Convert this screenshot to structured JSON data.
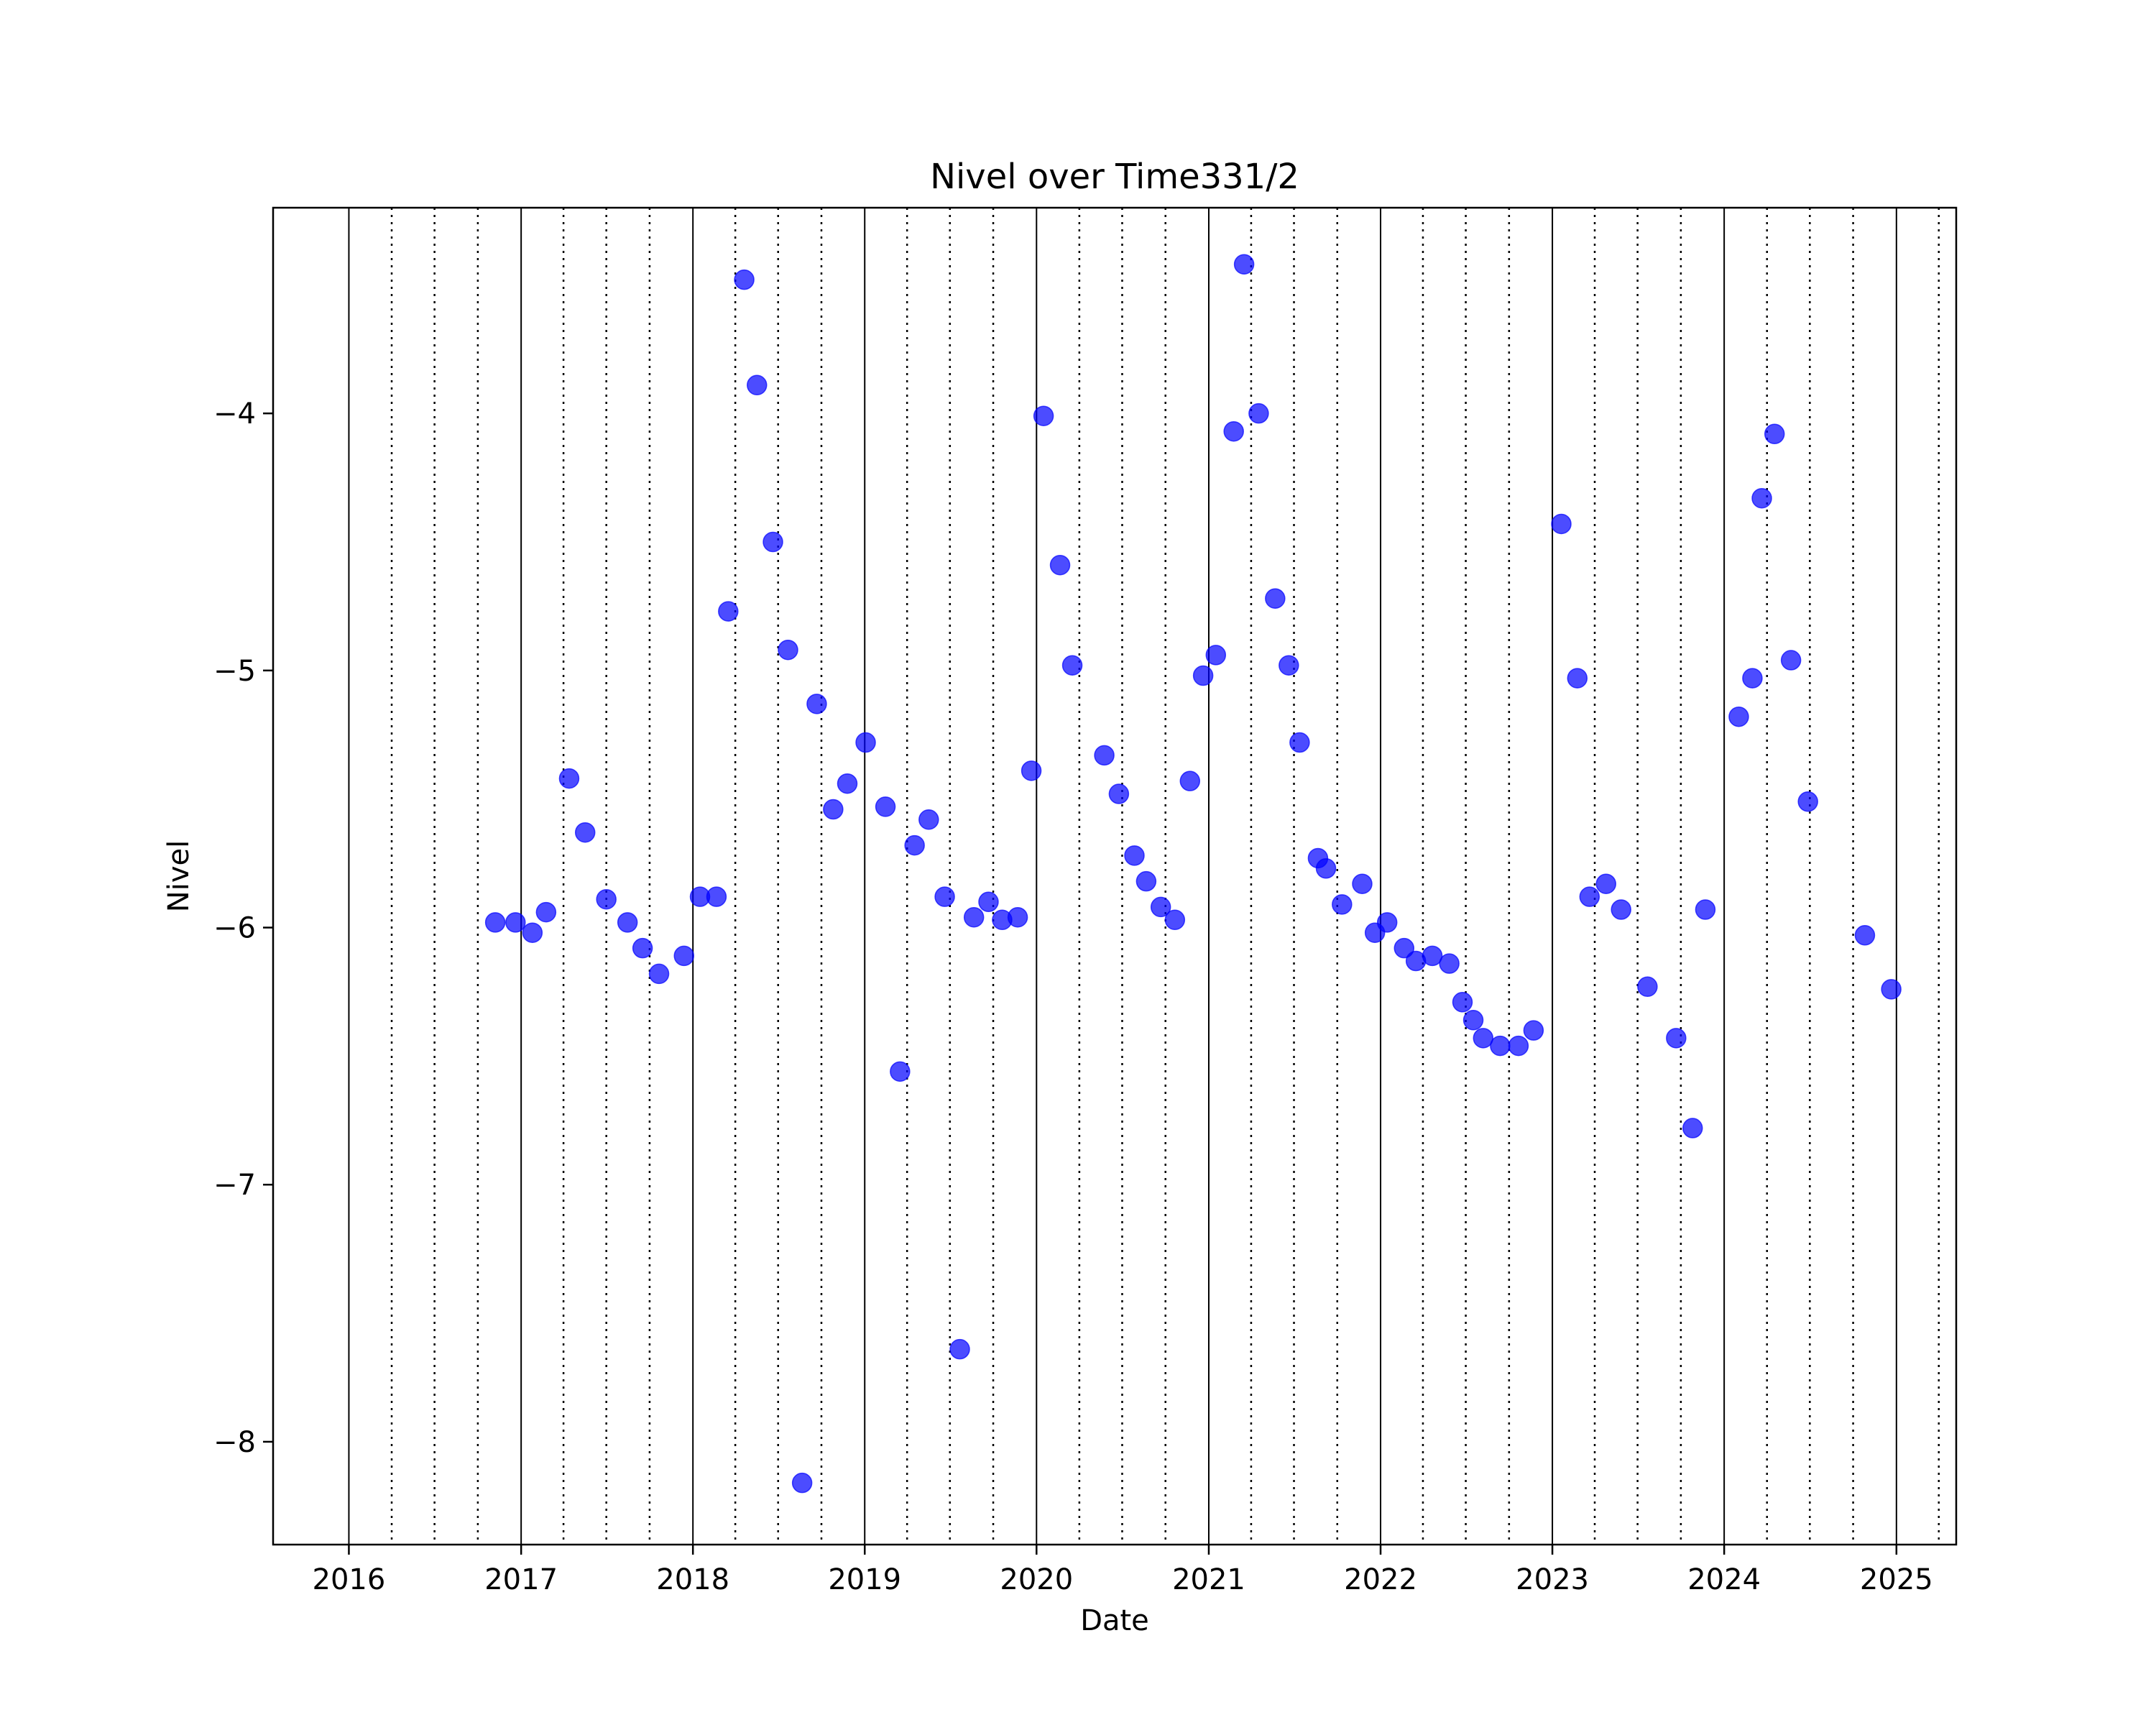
{
  "chart_data": {
    "type": "scatter",
    "title": "Nivel over Time331/2",
    "xlabel": "Date",
    "ylabel": "Nivel",
    "xlim": [
      "2015-07-24",
      "2025-05-08"
    ],
    "ylim": [
      -8.4,
      -3.2
    ],
    "x_ticks": [
      "2016",
      "2017",
      "2018",
      "2019",
      "2020",
      "2021",
      "2022",
      "2023",
      "2024",
      "2025"
    ],
    "y_ticks": [
      -4,
      -5,
      -6,
      -7,
      -8
    ],
    "y_tick_labels": [
      "−4",
      "−5",
      "−6",
      "−7",
      "−8"
    ],
    "grid": "vertical dotted at quarter starts, solid at year starts",
    "marker_color": "#0000ff",
    "marker_alpha": 0.7,
    "series": [
      {
        "points": [
          [
            "2016-11-07",
            -5.98
          ],
          [
            "2016-12-20",
            -5.98
          ],
          [
            "2017-01-25",
            -6.02
          ],
          [
            "2017-02-23",
            -5.94
          ],
          [
            "2017-04-13",
            -5.42
          ],
          [
            "2017-05-17",
            -5.63
          ],
          [
            "2017-07-01",
            -5.89
          ],
          [
            "2017-08-15",
            -5.98
          ],
          [
            "2017-09-16",
            -6.08
          ],
          [
            "2017-10-21",
            -6.18
          ],
          [
            "2017-12-13",
            -6.11
          ],
          [
            "2018-01-16",
            -5.88
          ],
          [
            "2018-02-20",
            -5.88
          ],
          [
            "2018-03-17",
            -4.77
          ],
          [
            "2018-04-20",
            -3.48
          ],
          [
            "2018-05-17",
            -3.89
          ],
          [
            "2018-06-20",
            -4.5
          ],
          [
            "2018-07-22",
            -4.92
          ],
          [
            "2018-08-21",
            -8.16
          ],
          [
            "2018-09-21",
            -5.13
          ],
          [
            "2018-10-26",
            -5.54
          ],
          [
            "2018-11-25",
            -5.44
          ],
          [
            "2019-01-03",
            -5.28
          ],
          [
            "2019-02-14",
            -5.53
          ],
          [
            "2019-03-17",
            -6.56
          ],
          [
            "2019-04-17",
            -5.68
          ],
          [
            "2019-05-17",
            -5.58
          ],
          [
            "2019-06-20",
            -5.88
          ],
          [
            "2019-07-22",
            -7.64
          ],
          [
            "2019-08-21",
            -5.96
          ],
          [
            "2019-09-21",
            -5.9
          ],
          [
            "2019-10-20",
            -5.97
          ],
          [
            "2019-11-22",
            -5.96
          ],
          [
            "2019-12-21",
            -5.39
          ],
          [
            "2020-01-16",
            -4.01
          ],
          [
            "2020-02-20",
            -4.59
          ],
          [
            "2020-03-17",
            -4.98
          ],
          [
            "2020-05-24",
            -5.33
          ],
          [
            "2020-06-24",
            -5.48
          ],
          [
            "2020-07-27",
            -5.72
          ],
          [
            "2020-08-21",
            -5.82
          ],
          [
            "2020-09-21",
            -5.92
          ],
          [
            "2020-10-21",
            -5.97
          ],
          [
            "2020-11-22",
            -5.43
          ],
          [
            "2020-12-20",
            -5.02
          ],
          [
            "2021-01-16",
            -4.94
          ],
          [
            "2021-02-23",
            -4.07
          ],
          [
            "2021-03-17",
            -3.42
          ],
          [
            "2021-04-17",
            -4.0
          ],
          [
            "2021-05-22",
            -4.72
          ],
          [
            "2021-06-20",
            -4.98
          ],
          [
            "2021-07-13",
            -5.28
          ],
          [
            "2021-08-21",
            -5.73
          ],
          [
            "2021-09-07",
            -5.77
          ],
          [
            "2021-10-11",
            -5.91
          ],
          [
            "2021-11-23",
            -5.83
          ],
          [
            "2021-12-20",
            -6.02
          ],
          [
            "2022-01-15",
            -5.98
          ],
          [
            "2022-02-20",
            -6.08
          ],
          [
            "2022-03-17",
            -6.13
          ],
          [
            "2022-04-21",
            -6.11
          ],
          [
            "2022-05-27",
            -6.14
          ],
          [
            "2022-06-24",
            -6.29
          ],
          [
            "2022-07-17",
            -6.36
          ],
          [
            "2022-08-07",
            -6.43
          ],
          [
            "2022-09-12",
            -6.46
          ],
          [
            "2022-10-21",
            -6.46
          ],
          [
            "2022-11-22",
            -6.4
          ],
          [
            "2023-01-20",
            -4.43
          ],
          [
            "2023-02-23",
            -5.03
          ],
          [
            "2023-03-21",
            -5.88
          ],
          [
            "2023-04-25",
            -5.83
          ],
          [
            "2023-05-27",
            -5.93
          ],
          [
            "2023-07-22",
            -6.23
          ],
          [
            "2023-09-21",
            -6.43
          ],
          [
            "2023-10-26",
            -6.78
          ],
          [
            "2023-11-22",
            -5.93
          ],
          [
            "2024-02-01",
            -5.18
          ],
          [
            "2024-03-01",
            -5.03
          ],
          [
            "2024-03-21",
            -4.33
          ],
          [
            "2024-04-17",
            -4.08
          ],
          [
            "2024-05-22",
            -4.96
          ],
          [
            "2024-06-27",
            -5.51
          ],
          [
            "2024-10-26",
            -6.03
          ],
          [
            "2024-12-21",
            -6.24
          ]
        ]
      }
    ]
  }
}
